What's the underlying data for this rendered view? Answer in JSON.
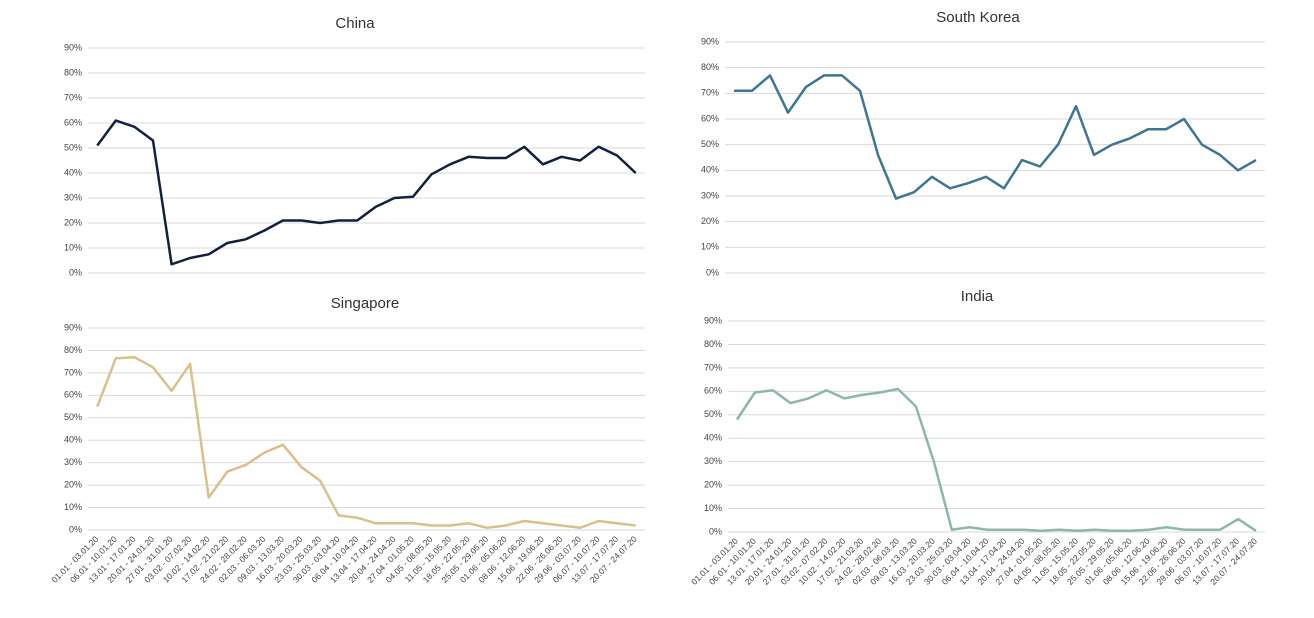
{
  "chart_data": [
    {
      "type": "line",
      "title": "China",
      "color": "#12213b",
      "grid": true,
      "ylim": [
        0,
        90
      ],
      "yticks": [
        {
          "value": 0,
          "label": "0%"
        },
        {
          "value": 10,
          "label": "10%"
        },
        {
          "value": 20,
          "label": "20%"
        },
        {
          "value": 30,
          "label": "30%"
        },
        {
          "value": 40,
          "label": "40%"
        },
        {
          "value": 50,
          "label": "50%"
        },
        {
          "value": 60,
          "label": "60%"
        },
        {
          "value": 70,
          "label": "70%"
        },
        {
          "value": 80,
          "label": "80%"
        },
        {
          "value": 90,
          "label": "90%"
        }
      ],
      "values": [
        51,
        61,
        58.5,
        53,
        3.5,
        6,
        7.5,
        12,
        13.5,
        17,
        21,
        21,
        20,
        21,
        21,
        26.5,
        30,
        30.5,
        39.5,
        43.5,
        46.5,
        46,
        46,
        50.5,
        43.5,
        46.5,
        45,
        50.5,
        47,
        40
      ]
    },
    {
      "type": "line",
      "title": "South Korea",
      "color": "#3f7595",
      "grid": true,
      "ylim": [
        0,
        90
      ],
      "yticks": [
        {
          "value": 0,
          "label": "0%"
        },
        {
          "value": 10,
          "label": "10%"
        },
        {
          "value": 20,
          "label": "20%"
        },
        {
          "value": 30,
          "label": "30%"
        },
        {
          "value": 40,
          "label": "40%"
        },
        {
          "value": 50,
          "label": "50%"
        },
        {
          "value": 60,
          "label": "60%"
        },
        {
          "value": 70,
          "label": "70%"
        },
        {
          "value": 80,
          "label": "80%"
        },
        {
          "value": 90,
          "label": "90%"
        }
      ],
      "values": [
        71,
        71,
        77,
        62.5,
        72.5,
        77,
        77,
        71,
        46,
        29,
        31.5,
        37.5,
        33,
        35,
        37.5,
        33,
        44,
        41.5,
        50,
        65,
        46,
        50,
        52.5,
        56,
        56,
        60,
        50,
        46,
        40,
        44
      ]
    },
    {
      "type": "line",
      "title": "Singapore",
      "color": "#d8c18c",
      "grid": true,
      "ylim": [
        0,
        90
      ],
      "yticks": [
        {
          "value": 0,
          "label": "0%"
        },
        {
          "value": 10,
          "label": "10%"
        },
        {
          "value": 20,
          "label": "20%"
        },
        {
          "value": 30,
          "label": "30%"
        },
        {
          "value": 40,
          "label": "40%"
        },
        {
          "value": 50,
          "label": "50%"
        },
        {
          "value": 60,
          "label": "60%"
        },
        {
          "value": 70,
          "label": "70%"
        },
        {
          "value": 80,
          "label": "80%"
        },
        {
          "value": 90,
          "label": "90%"
        }
      ],
      "categories": [
        "01.01 - 03.01.20",
        "06.01 - 10.01.20",
        "13.01 - 17.01.20",
        "20.01 - 24.01.20",
        "27.01 - 31.01.20",
        "03.02 - 07.02.20",
        "10.02 - 14.02.20",
        "17.02 - 21.02.20",
        "24.02 - 28.02.20",
        "02.03 - 06.03.20",
        "09.03 - 13.03.20",
        "16.03 - 20.03.20",
        "23.03 - 25.03.20",
        "30.03 - 03.04.20",
        "06.04 - 10.04.20",
        "13.04 - 17.04.20",
        "20.04 - 24.04.20",
        "27.04 - 01.05.20",
        "04.05 - 08.05.20",
        "11.05 - 15.05.20",
        "18.05 - 22.05.20",
        "25.05 - 29.05.20",
        "01.06 - 05.06.20",
        "08.06 - 12.06.20",
        "15.06 - 19.06.20",
        "22.06 - 26.06.20",
        "29.06 - 03.07.20",
        "06.07 - 10.07.20",
        "13.07 - 17.07.20",
        "20.07 - 24.07.20"
      ],
      "values": [
        55,
        76.5,
        77,
        72.5,
        62,
        74,
        14.5,
        26,
        29,
        34.5,
        38,
        28,
        22,
        6.5,
        5.5,
        3,
        3,
        3,
        2,
        2,
        3,
        1,
        2,
        4,
        3,
        2,
        1,
        4,
        3,
        2
      ]
    },
    {
      "type": "line",
      "title": "India",
      "color": "#8cb8a8",
      "grid": true,
      "ylim": [
        0,
        90
      ],
      "yticks": [
        {
          "value": 0,
          "label": "0%"
        },
        {
          "value": 10,
          "label": "10%"
        },
        {
          "value": 20,
          "label": "20%"
        },
        {
          "value": 30,
          "label": "30%"
        },
        {
          "value": 40,
          "label": "40%"
        },
        {
          "value": 50,
          "label": "50%"
        },
        {
          "value": 60,
          "label": "60%"
        },
        {
          "value": 70,
          "label": "70%"
        },
        {
          "value": 80,
          "label": "80%"
        },
        {
          "value": 90,
          "label": "90%"
        }
      ],
      "categories": [
        "01.01 - 03.01.20",
        "06.01 - 10.01.20",
        "13.01 - 17.01.20",
        "20.01 - 24.01.20",
        "27.01 - 31.01.20",
        "03.02 - 07.02.20",
        "10.02 - 14.02.20",
        "17.02 - 21.02.20",
        "24.02 - 28.02.20",
        "02.03 - 06.03.20",
        "09.03 - 13.03.20",
        "16.03 - 20.03.20",
        "23.03 - 25.03.20",
        "30.03 - 03.04.20",
        "06.04 - 10.04.20",
        "13.04 - 17.04.20",
        "20.04 - 24.04.20",
        "27.04 - 01.05.20",
        "04.05 - 08.05.20",
        "11.05 - 15.05.20",
        "18.05 - 22.05.20",
        "25.05 - 29.05.20",
        "01.06 - 05.06.20",
        "08.06 - 12.06.20",
        "15.06 - 19.06.20",
        "22.06 - 26.06.20",
        "29.06 - 03.07.20",
        "06.07 - 10.07.20",
        "13.07 - 17.07.20",
        "20.07 - 24.07.20"
      ],
      "values": [
        48,
        59.5,
        60.5,
        55,
        57,
        60.5,
        57,
        58.5,
        59.5,
        61,
        53.5,
        30,
        1,
        2,
        1,
        1,
        1,
        0.5,
        1,
        0.5,
        1,
        0.5,
        0.5,
        1,
        2,
        1,
        1,
        1,
        5.5,
        0.5
      ]
    }
  ]
}
